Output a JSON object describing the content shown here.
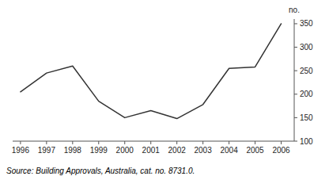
{
  "chart_data": {
    "type": "line",
    "ylabel": "no.",
    "annotations": [
      "Source:  Building Approvals, Australia, cat. no. 8731.0."
    ],
    "x": [
      1996,
      1997,
      1998,
      1999,
      2000,
      2001,
      2002,
      2003,
      2004,
      2005,
      2006
    ],
    "values": [
      205,
      245,
      260,
      185,
      150,
      165,
      148,
      178,
      255,
      258,
      350
    ],
    "color": "#333333",
    "xlim": [
      1995.7,
      2006.5
    ],
    "xticks": [
      1996,
      1997,
      1998,
      1999,
      2000,
      2001,
      2002,
      2003,
      2004,
      2005,
      2006
    ],
    "ylim": [
      100,
      360
    ],
    "yticks": [
      100,
      150,
      200,
      250,
      300,
      350
    ],
    "grid": false
  }
}
